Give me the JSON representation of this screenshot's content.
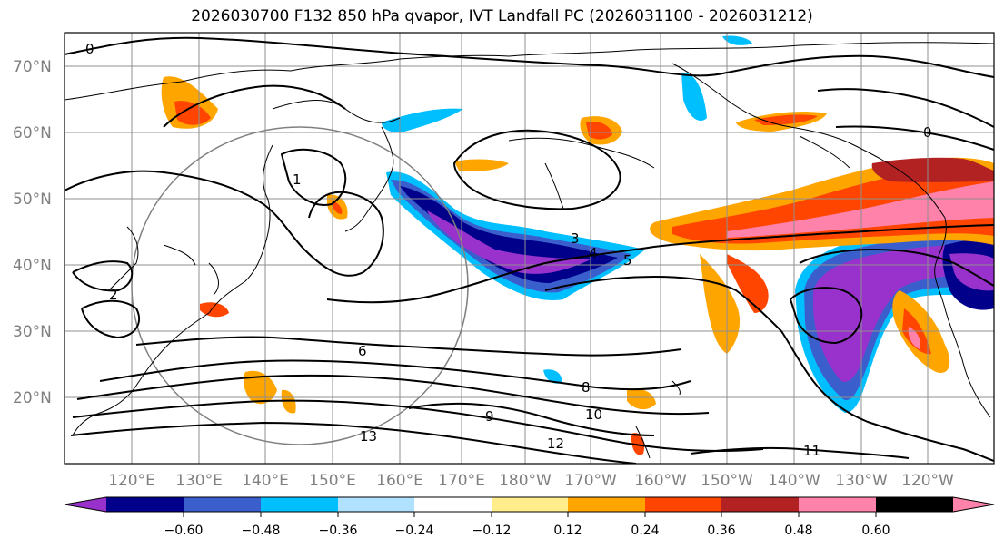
{
  "title": "2026030700 F132 850 hPa qvapor, IVT Landfall PC (2026031100 - 2026031212)",
  "lat_labels": [
    "70°N",
    "60°N",
    "50°N",
    "40°N",
    "30°N",
    "20°N"
  ],
  "lon_labels": [
    "120°E",
    "130°E",
    "140°E",
    "150°E",
    "160°E",
    "170°E",
    "180°W",
    "170°W",
    "160°W",
    "150°W",
    "140°W",
    "130°W",
    "120°W"
  ],
  "contour_labels": [
    "0",
    "1",
    "2",
    "3",
    "4",
    "5",
    "6",
    "8",
    "9",
    "10",
    "11",
    "12",
    "13",
    "0"
  ],
  "colorbar": {
    "colors": [
      "#9932CC",
      "#00008B",
      "#3A5FCD",
      "#00BFFF",
      "#B0E2FF",
      "#FFFFFF",
      "#FFEC8B",
      "#FFA500",
      "#FF4500",
      "#B22222",
      "#FF82AB"
    ],
    "ticks": [
      "−0.60",
      "−0.48",
      "−0.36",
      "−0.24",
      "−0.12",
      "0.12",
      "0.24",
      "0.36",
      "0.48",
      "0.60"
    ]
  }
}
